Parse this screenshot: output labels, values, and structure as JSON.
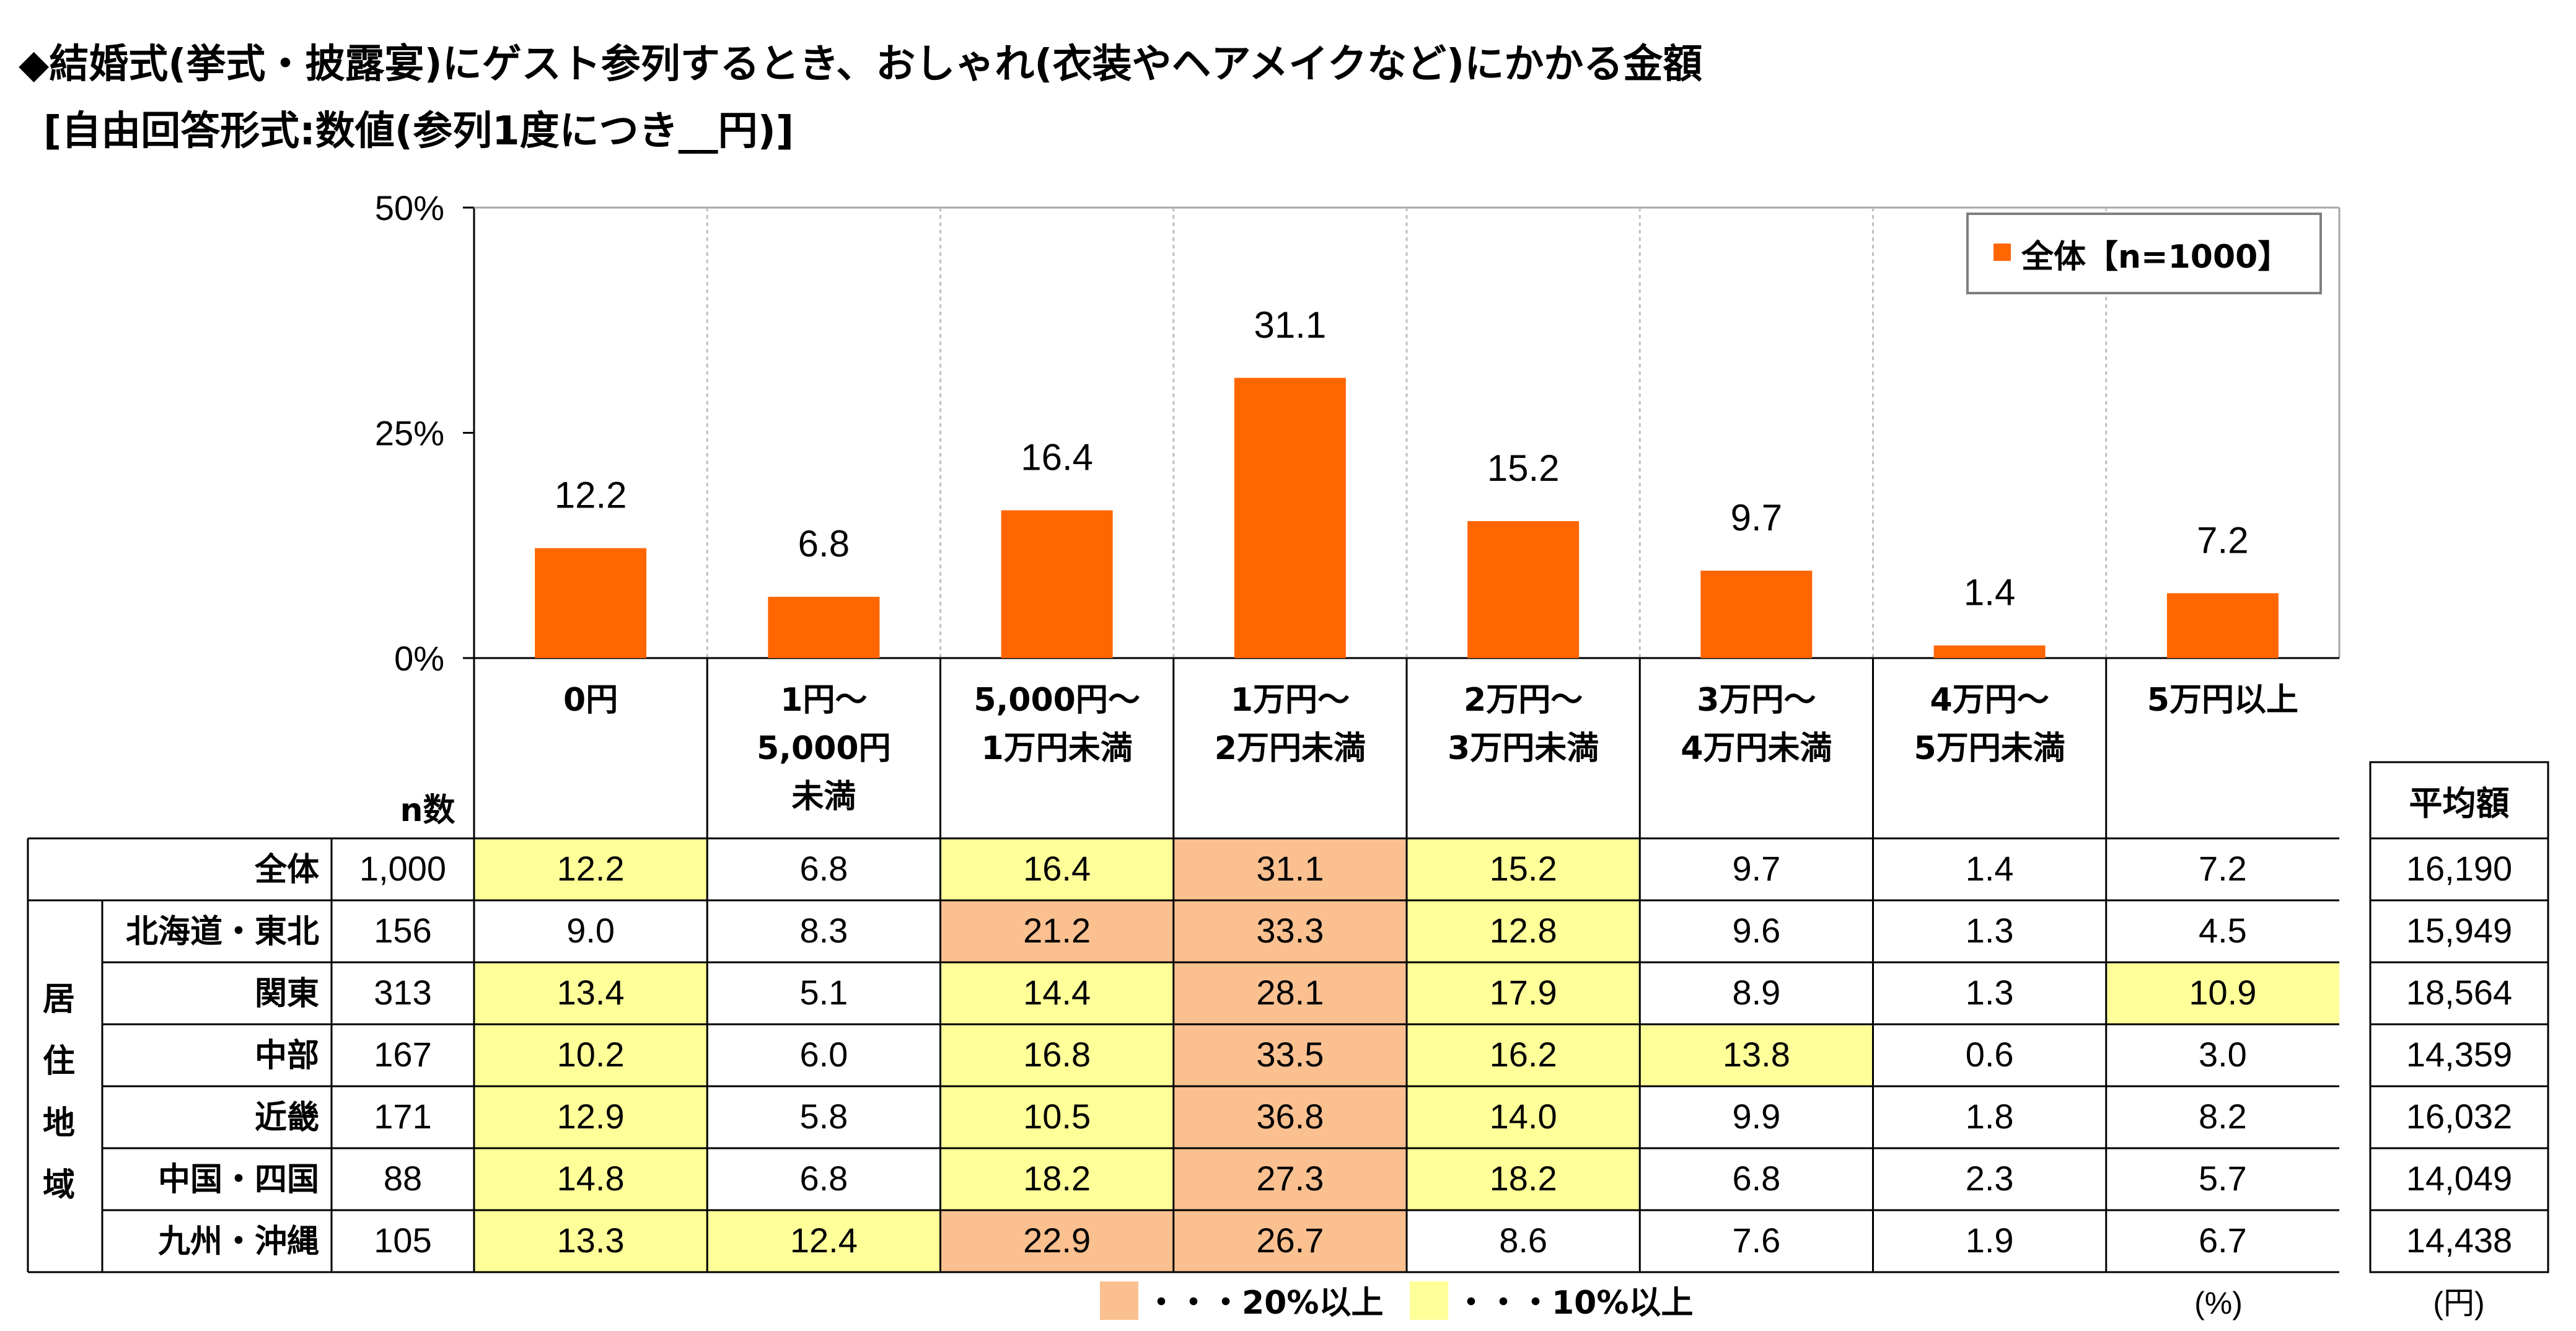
{
  "title": {
    "line1": "◆結婚式(挙式・披露宴)にゲスト参列するとき、おしゃれ(衣装やヘアメイクなど)にかかる金額",
    "line2": "[自由回答形式:数値(参列1度につき__円)]"
  },
  "chart_data": {
    "type": "bar",
    "categories": [
      "0円",
      "1円〜5,000円未満",
      "5,000円〜1万円未満",
      "1万円〜2万円未満",
      "2万円〜3万円未満",
      "3万円〜4万円未満",
      "4万円〜5万円未満",
      "5万円以上"
    ],
    "category_lines": [
      [
        "0円"
      ],
      [
        "1円〜",
        "5,000円",
        "未満"
      ],
      [
        "5,000円〜",
        "1万円未満"
      ],
      [
        "1万円〜",
        "2万円未満"
      ],
      [
        "2万円〜",
        "3万円未満"
      ],
      [
        "3万円〜",
        "4万円未満"
      ],
      [
        "4万円〜",
        "5万円未満"
      ],
      [
        "5万円以上"
      ]
    ],
    "series": [
      {
        "name": "全体【n=1000】",
        "values": [
          12.2,
          6.8,
          16.4,
          31.1,
          15.2,
          9.7,
          1.4,
          7.2
        ]
      }
    ],
    "yticks": [
      "0%",
      "25%",
      "50%"
    ],
    "ylim": [
      0,
      50
    ],
    "legend": "top-right",
    "bar_color": "#FF6600",
    "grid": "vertical dashed separators"
  },
  "table": {
    "n_header": "n数",
    "avg_header": "平均額",
    "group_label": [
      "居",
      "住",
      "地",
      "域"
    ],
    "rows": [
      {
        "label": "全体",
        "n": "1,000",
        "values": [
          "12.2",
          "6.8",
          "16.4",
          "31.1",
          "15.2",
          "9.7",
          "1.4",
          "7.2"
        ],
        "avg": "16,190"
      },
      {
        "label": "北海道・東北",
        "n": "156",
        "values": [
          "9.0",
          "8.3",
          "21.2",
          "33.3",
          "12.8",
          "9.6",
          "1.3",
          "4.5"
        ],
        "avg": "15,949"
      },
      {
        "label": "関東",
        "n": "313",
        "values": [
          "13.4",
          "5.1",
          "14.4",
          "28.1",
          "17.9",
          "8.9",
          "1.3",
          "10.9"
        ],
        "avg": "18,564"
      },
      {
        "label": "中部",
        "n": "167",
        "values": [
          "10.2",
          "6.0",
          "16.8",
          "33.5",
          "16.2",
          "13.8",
          "0.6",
          "3.0"
        ],
        "avg": "14,359"
      },
      {
        "label": "近畿",
        "n": "171",
        "values": [
          "12.9",
          "5.8",
          "10.5",
          "36.8",
          "14.0",
          "9.9",
          "1.8",
          "8.2"
        ],
        "avg": "16,032"
      },
      {
        "label": "中国・四国",
        "n": "88",
        "values": [
          "14.8",
          "6.8",
          "18.2",
          "27.3",
          "18.2",
          "6.8",
          "2.3",
          "5.7"
        ],
        "avg": "14,049"
      },
      {
        "label": "九州・沖縄",
        "n": "105",
        "values": [
          "13.3",
          "12.4",
          "22.9",
          "26.7",
          "8.6",
          "7.6",
          "1.9",
          "6.7"
        ],
        "avg": "14,438"
      }
    ],
    "pct_unit": "(%)",
    "yen_unit": "(円)"
  },
  "highlight": {
    "high_color": "#FAC090",
    "mid_color": "#FFFF99",
    "high_label": "・・・20%以上",
    "mid_label": "・・・10%以上"
  }
}
